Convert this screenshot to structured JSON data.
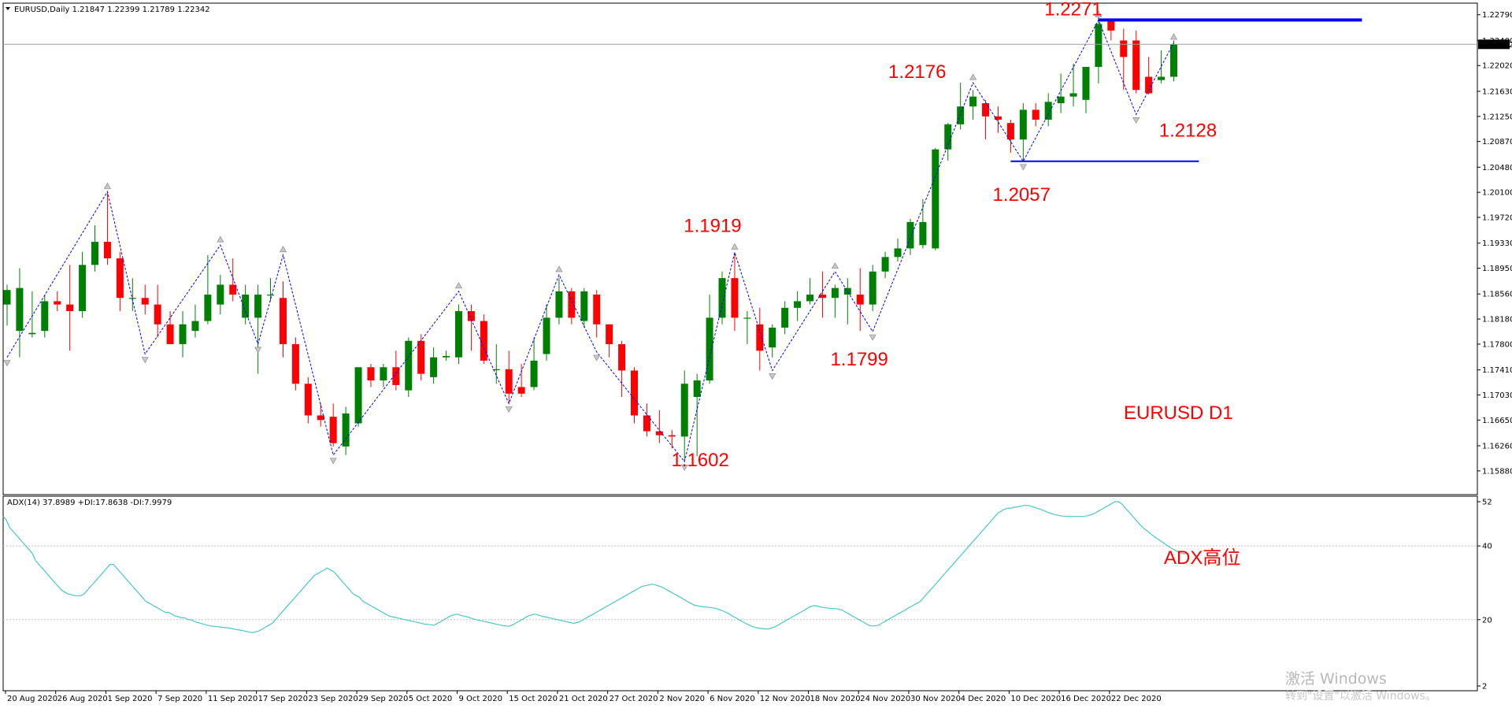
{
  "header": {
    "symbol_line": "EURUSD,Daily  1.21847 1.22399 1.21789 1.22342"
  },
  "indicator": {
    "header": "ADX(14) 37.8989 +DI:17.8638 -DI:7.9979",
    "levels": [
      "52",
      "40",
      "20",
      "2"
    ],
    "annotation": "ADX高位"
  },
  "watermark": {
    "line1": "激活 Windows",
    "line2": "转到\"设置\"以激活 Windows。"
  },
  "colors": {
    "bull": "#008000",
    "bear": "#ff0000",
    "zigzag": "#0000ff",
    "adx_line": "#48c8c8",
    "annotation": "#ff0000"
  },
  "chart_data": [
    {
      "type": "candlestick",
      "symbol": "EURUSD",
      "timeframe": "Daily",
      "title": "EURUSD D1",
      "ylim": [
        1.1558,
        1.2287
      ],
      "y_ticks": [
        "1.22790",
        "1.22400",
        "1.22020",
        "1.21630",
        "1.21250",
        "1.20870",
        "1.20480",
        "1.20100",
        "1.19720",
        "1.19330",
        "1.18950",
        "1.18560",
        "1.18180",
        "1.17800",
        "1.17410",
        "1.17030",
        "1.16650",
        "1.16260",
        "1.15880"
      ],
      "current_price": "1.22342",
      "x_labels": [
        "20 Aug 2020",
        "26 Aug 2020",
        "1 Sep 2020",
        "7 Sep 2020",
        "11 Sep 2020",
        "17 Sep 2020",
        "23 Sep 2020",
        "29 Sep 2020",
        "5 Oct 2020",
        "9 Oct 2020",
        "15 Oct 2020",
        "21 Oct 2020",
        "27 Oct 2020",
        "2 Nov 2020",
        "6 Nov 2020",
        "12 Nov 2020",
        "18 Nov 2020",
        "24 Nov 2020",
        "30 Nov 2020",
        "4 Dec 2020",
        "10 Dec 2020",
        "16 Dec 2020",
        "22 Dec 2020"
      ],
      "candles": [
        {
          "o": 1.184,
          "h": 1.187,
          "l": 1.1808,
          "c": 1.1862
        },
        {
          "o": 1.18,
          "h": 1.1895,
          "l": 1.176,
          "c": 1.1865
        },
        {
          "o": 1.1795,
          "h": 1.186,
          "l": 1.179,
          "c": 1.1797
        },
        {
          "o": 1.18,
          "h": 1.1855,
          "l": 1.179,
          "c": 1.1845
        },
        {
          "o": 1.1845,
          "h": 1.186,
          "l": 1.183,
          "c": 1.184
        },
        {
          "o": 1.184,
          "h": 1.19,
          "l": 1.177,
          "c": 1.183
        },
        {
          "o": 1.183,
          "h": 1.192,
          "l": 1.182,
          "c": 1.19
        },
        {
          "o": 1.19,
          "h": 1.196,
          "l": 1.189,
          "c": 1.1935
        },
        {
          "o": 1.1935,
          "h": 1.2011,
          "l": 1.19,
          "c": 1.191
        },
        {
          "o": 1.191,
          "h": 1.192,
          "l": 1.183,
          "c": 1.185
        },
        {
          "o": 1.185,
          "h": 1.188,
          "l": 1.183,
          "c": 1.185
        },
        {
          "o": 1.185,
          "h": 1.187,
          "l": 1.1825,
          "c": 1.184
        },
        {
          "o": 1.184,
          "h": 1.187,
          "l": 1.179,
          "c": 1.181
        },
        {
          "o": 1.181,
          "h": 1.183,
          "l": 1.178,
          "c": 1.178
        },
        {
          "o": 1.178,
          "h": 1.183,
          "l": 1.176,
          "c": 1.181
        },
        {
          "o": 1.18,
          "h": 1.184,
          "l": 1.179,
          "c": 1.1815
        },
        {
          "o": 1.1815,
          "h": 1.1915,
          "l": 1.181,
          "c": 1.1855
        },
        {
          "o": 1.184,
          "h": 1.1885,
          "l": 1.1825,
          "c": 1.187
        },
        {
          "o": 1.187,
          "h": 1.191,
          "l": 1.1845,
          "c": 1.1855
        },
        {
          "o": 1.182,
          "h": 1.187,
          "l": 1.181,
          "c": 1.1855
        },
        {
          "o": 1.182,
          "h": 1.187,
          "l": 1.1735,
          "c": 1.1855
        },
        {
          "o": 1.1855,
          "h": 1.188,
          "l": 1.1845,
          "c": 1.1855
        },
        {
          "o": 1.185,
          "h": 1.1875,
          "l": 1.176,
          "c": 1.178
        },
        {
          "o": 1.178,
          "h": 1.179,
          "l": 1.171,
          "c": 1.172
        },
        {
          "o": 1.172,
          "h": 1.173,
          "l": 1.166,
          "c": 1.1672
        },
        {
          "o": 1.1672,
          "h": 1.169,
          "l": 1.1655,
          "c": 1.1665
        },
        {
          "o": 1.167,
          "h": 1.169,
          "l": 1.1625,
          "c": 1.163
        },
        {
          "o": 1.1625,
          "h": 1.1685,
          "l": 1.1612,
          "c": 1.1675
        },
        {
          "o": 1.166,
          "h": 1.1745,
          "l": 1.1655,
          "c": 1.1745
        },
        {
          "o": 1.1745,
          "h": 1.175,
          "l": 1.1715,
          "c": 1.1725
        },
        {
          "o": 1.1725,
          "h": 1.175,
          "l": 1.1715,
          "c": 1.1745
        },
        {
          "o": 1.1745,
          "h": 1.177,
          "l": 1.171,
          "c": 1.1718
        },
        {
          "o": 1.171,
          "h": 1.179,
          "l": 1.17,
          "c": 1.1785
        },
        {
          "o": 1.1785,
          "h": 1.1795,
          "l": 1.1725,
          "c": 1.1735
        },
        {
          "o": 1.173,
          "h": 1.1775,
          "l": 1.172,
          "c": 1.176
        },
        {
          "o": 1.176,
          "h": 1.177,
          "l": 1.1755,
          "c": 1.1762
        },
        {
          "o": 1.176,
          "h": 1.184,
          "l": 1.175,
          "c": 1.183
        },
        {
          "o": 1.183,
          "h": 1.184,
          "l": 1.177,
          "c": 1.1815
        },
        {
          "o": 1.1815,
          "h": 1.1825,
          "l": 1.175,
          "c": 1.1755
        },
        {
          "o": 1.1742,
          "h": 1.178,
          "l": 1.172,
          "c": 1.1742
        },
        {
          "o": 1.1742,
          "h": 1.177,
          "l": 1.169,
          "c": 1.1705
        },
        {
          "o": 1.1715,
          "h": 1.175,
          "l": 1.17,
          "c": 1.1705
        },
        {
          "o": 1.1715,
          "h": 1.179,
          "l": 1.171,
          "c": 1.1755
        },
        {
          "o": 1.1765,
          "h": 1.184,
          "l": 1.1755,
          "c": 1.182
        },
        {
          "o": 1.182,
          "h": 1.188,
          "l": 1.181,
          "c": 1.186
        },
        {
          "o": 1.186,
          "h": 1.1865,
          "l": 1.181,
          "c": 1.182
        },
        {
          "o": 1.1815,
          "h": 1.1865,
          "l": 1.1805,
          "c": 1.186
        },
        {
          "o": 1.1855,
          "h": 1.1862,
          "l": 1.179,
          "c": 1.181
        },
        {
          "o": 1.181,
          "h": 1.181,
          "l": 1.176,
          "c": 1.178
        },
        {
          "o": 1.178,
          "h": 1.1785,
          "l": 1.17,
          "c": 1.174
        },
        {
          "o": 1.174,
          "h": 1.1745,
          "l": 1.166,
          "c": 1.1672
        },
        {
          "o": 1.1672,
          "h": 1.169,
          "l": 1.164,
          "c": 1.1648
        },
        {
          "o": 1.1648,
          "h": 1.168,
          "l": 1.163,
          "c": 1.1642
        },
        {
          "o": 1.1642,
          "h": 1.165,
          "l": 1.1622,
          "c": 1.164
        },
        {
          "o": 1.164,
          "h": 1.174,
          "l": 1.1602,
          "c": 1.172
        },
        {
          "o": 1.17,
          "h": 1.1735,
          "l": 1.161,
          "c": 1.1725
        },
        {
          "o": 1.1725,
          "h": 1.1855,
          "l": 1.172,
          "c": 1.182
        },
        {
          "o": 1.182,
          "h": 1.189,
          "l": 1.181,
          "c": 1.188
        },
        {
          "o": 1.188,
          "h": 1.1919,
          "l": 1.18,
          "c": 1.182
        },
        {
          "o": 1.182,
          "h": 1.183,
          "l": 1.178,
          "c": 1.182
        },
        {
          "o": 1.181,
          "h": 1.1835,
          "l": 1.174,
          "c": 1.177
        },
        {
          "o": 1.1775,
          "h": 1.181,
          "l": 1.176,
          "c": 1.1805
        },
        {
          "o": 1.1805,
          "h": 1.1845,
          "l": 1.1795,
          "c": 1.1835
        },
        {
          "o": 1.1835,
          "h": 1.186,
          "l": 1.1815,
          "c": 1.1845
        },
        {
          "o": 1.1845,
          "h": 1.188,
          "l": 1.184,
          "c": 1.1855
        },
        {
          "o": 1.1855,
          "h": 1.189,
          "l": 1.182,
          "c": 1.185
        },
        {
          "o": 1.185,
          "h": 1.187,
          "l": 1.182,
          "c": 1.1865
        },
        {
          "o": 1.1855,
          "h": 1.188,
          "l": 1.181,
          "c": 1.1865
        },
        {
          "o": 1.1855,
          "h": 1.1895,
          "l": 1.18,
          "c": 1.184
        },
        {
          "o": 1.184,
          "h": 1.19,
          "l": 1.183,
          "c": 1.189
        },
        {
          "o": 1.189,
          "h": 1.192,
          "l": 1.188,
          "c": 1.1912
        },
        {
          "o": 1.1912,
          "h": 1.194,
          "l": 1.1905,
          "c": 1.1925
        },
        {
          "o": 1.1925,
          "h": 1.197,
          "l": 1.1915,
          "c": 1.1965
        },
        {
          "o": 1.193,
          "h": 1.2,
          "l": 1.1925,
          "c": 1.1965
        },
        {
          "o": 1.1925,
          "h": 1.2077,
          "l": 1.1922,
          "c": 1.2075
        },
        {
          "o": 1.2075,
          "h": 1.2115,
          "l": 1.2058,
          "c": 1.2113
        },
        {
          "o": 1.2113,
          "h": 1.2176,
          "l": 1.2105,
          "c": 1.214
        },
        {
          "o": 1.214,
          "h": 1.2165,
          "l": 1.212,
          "c": 1.2155
        },
        {
          "o": 1.2145,
          "h": 1.215,
          "l": 1.209,
          "c": 1.2125
        },
        {
          "o": 1.2125,
          "h": 1.214,
          "l": 1.21,
          "c": 1.212
        },
        {
          "o": 1.2115,
          "h": 1.212,
          "l": 1.207,
          "c": 1.209
        },
        {
          "o": 1.209,
          "h": 1.2145,
          "l": 1.2057,
          "c": 1.2135
        },
        {
          "o": 1.2135,
          "h": 1.2145,
          "l": 1.211,
          "c": 1.212
        },
        {
          "o": 1.212,
          "h": 1.216,
          "l": 1.211,
          "c": 1.2147
        },
        {
          "o": 1.2145,
          "h": 1.219,
          "l": 1.213,
          "c": 1.2155
        },
        {
          "o": 1.2155,
          "h": 1.2205,
          "l": 1.214,
          "c": 1.216
        },
        {
          "o": 1.215,
          "h": 1.2195,
          "l": 1.213,
          "c": 1.22
        },
        {
          "o": 1.22,
          "h": 1.2275,
          "l": 1.2175,
          "c": 1.2265
        },
        {
          "o": 1.227,
          "h": 1.2271,
          "l": 1.224,
          "c": 1.2255
        },
        {
          "o": 1.224,
          "h": 1.2258,
          "l": 1.2165,
          "c": 1.2215
        },
        {
          "o": 1.224,
          "h": 1.2255,
          "l": 1.216,
          "c": 1.2165
        },
        {
          "o": 1.2185,
          "h": 1.2215,
          "l": 1.2158,
          "c": 1.216
        },
        {
          "o": 1.218,
          "h": 1.2225,
          "l": 1.2175,
          "c": 1.2185
        },
        {
          "o": 1.2185,
          "h": 1.224,
          "l": 1.2178,
          "c": 1.2234
        }
      ],
      "zigzag": [
        {
          "i": 0,
          "v": 1.176
        },
        {
          "i": 8,
          "v": 1.2011
        },
        {
          "i": 11,
          "v": 1.1765
        },
        {
          "i": 17,
          "v": 1.193
        },
        {
          "i": 20,
          "v": 1.178
        },
        {
          "i": 22,
          "v": 1.1915
        },
        {
          "i": 26,
          "v": 1.1612
        },
        {
          "i": 36,
          "v": 1.186
        },
        {
          "i": 40,
          "v": 1.169
        },
        {
          "i": 44,
          "v": 1.1885
        },
        {
          "i": 47,
          "v": 1.1768
        },
        {
          "i": 54,
          "v": 1.1602
        },
        {
          "i": 58,
          "v": 1.1919
        },
        {
          "i": 61,
          "v": 1.174
        },
        {
          "i": 66,
          "v": 1.189
        },
        {
          "i": 69,
          "v": 1.1799
        },
        {
          "i": 77,
          "v": 1.2176
        },
        {
          "i": 81,
          "v": 1.2057
        },
        {
          "i": 87,
          "v": 1.2271
        },
        {
          "i": 90,
          "v": 1.2128
        },
        {
          "i": 93,
          "v": 1.2237
        }
      ],
      "levels": [
        {
          "price": 1.2271,
          "from": 87,
          "to": 108,
          "color": "#0000ff"
        },
        {
          "price": 1.2057,
          "from": 80,
          "to": 95,
          "color": "#0000ff"
        }
      ],
      "annotations": [
        {
          "text": "1.2271",
          "i": 86,
          "v": 1.2271
        },
        {
          "text": "1.2176",
          "i": 75,
          "v": 1.2176
        },
        {
          "text": "1.2128",
          "i": 93,
          "v": 1.2128
        },
        {
          "text": "1.2057",
          "i": 82,
          "v": 1.2057
        },
        {
          "text": "1.1919",
          "i": 58,
          "v": 1.1919
        },
        {
          "text": "1.1799",
          "i": 69,
          "v": 1.1799
        },
        {
          "text": "1.1602",
          "i": 55,
          "v": 1.1602
        }
      ]
    },
    {
      "type": "line",
      "name": "ADX(14)",
      "ylim": [
        2,
        52
      ],
      "reference_levels": [
        40,
        20
      ],
      "values": [
        48,
        47,
        45,
        44,
        43,
        42,
        41,
        40,
        39,
        38,
        36,
        35,
        34,
        33,
        32,
        31,
        30,
        29,
        28,
        27.5,
        27,
        26.8,
        26.5,
        26.5,
        26.5,
        27,
        28,
        29,
        30,
        31,
        32,
        33,
        34,
        35,
        35,
        34,
        33,
        32,
        31,
        30,
        29,
        28,
        27,
        26,
        25,
        24.5,
        24,
        23.5,
        23,
        22.5,
        22,
        22,
        21.5,
        21,
        20.8,
        20.5,
        20.5,
        20,
        20,
        19.5,
        19.2,
        19,
        18.7,
        18.5,
        18.3,
        18.2,
        18.1,
        18,
        17.9,
        17.8,
        17.7,
        17.5,
        17.3,
        17.2,
        17,
        16.8,
        16.6,
        16.5,
        16.7,
        17,
        17.5,
        18,
        18.5,
        19,
        20,
        21,
        22,
        23,
        24,
        25,
        26,
        27,
        28,
        29,
        30,
        31,
        32,
        32.5,
        33,
        33.5,
        34,
        33.5,
        33,
        32,
        31,
        30,
        29,
        28,
        27,
        26.5,
        26,
        25,
        24.5,
        24,
        23.5,
        23,
        22.5,
        22,
        21.5,
        21,
        20.8,
        20.6,
        20.4,
        20.2,
        20,
        19.8,
        19.6,
        19.4,
        19.2,
        19,
        18.8,
        18.7,
        18.6,
        18.5,
        19,
        19.5,
        20,
        20.5,
        21,
        21.3,
        21.5,
        21.2,
        21,
        20.8,
        20.5,
        20.2,
        20,
        19.8,
        19.6,
        19.4,
        19.2,
        19,
        18.8,
        18.6,
        18.4,
        18.3,
        18.2,
        18.5,
        19,
        19.5,
        20,
        20.5,
        21,
        21.3,
        21.5,
        21.3,
        21,
        20.8,
        20.6,
        20.4,
        20.2,
        20,
        19.8,
        19.6,
        19.4,
        19.2,
        19,
        19.2,
        19.5,
        20,
        20.5,
        21,
        21.5,
        22,
        22.5,
        23,
        23.5,
        24,
        24.5,
        25,
        25.5,
        26,
        26.5,
        27,
        27.5,
        28,
        28.5,
        29,
        29.2,
        29.4,
        29.6,
        29.5,
        29.2,
        28.9,
        28.5,
        28,
        27.5,
        27,
        26.5,
        26,
        25.5,
        25,
        24.5,
        24,
        23.8,
        23.6,
        23.5,
        23.4,
        23.3,
        23.2,
        23,
        22.7,
        22.4,
        22,
        21.5,
        21,
        20.5,
        20,
        19.5,
        19,
        18.6,
        18.2,
        17.9,
        17.7,
        17.6,
        17.5,
        17.5,
        17.7,
        18,
        18.5,
        19,
        19.5,
        20,
        20.5,
        21,
        21.5,
        22,
        22.5,
        23,
        23.5,
        23.8,
        23.7,
        23.5,
        23.3,
        23.2,
        23.1,
        23,
        23,
        22.8,
        22.5,
        22,
        21.5,
        21,
        20.5,
        20,
        19.5,
        19,
        18.5,
        18.3,
        18.3,
        18.5,
        19,
        19.5,
        20,
        20.5,
        21,
        21.5,
        22,
        22.5,
        23,
        23.5,
        24,
        24.5,
        25,
        26,
        27,
        28,
        29,
        30,
        31,
        32,
        33,
        34,
        35,
        36,
        37,
        38,
        39,
        40,
        41,
        42,
        43,
        44,
        45,
        46,
        47,
        48,
        49,
        49.5,
        50,
        50.2,
        50.3,
        50.5,
        50.6,
        50.8,
        51,
        51,
        50.8,
        50.5,
        50.2,
        50,
        49.6,
        49.2,
        48.9,
        48.6,
        48.4,
        48.2,
        48.1,
        48,
        48,
        48,
        48,
        48,
        48,
        48.1,
        48.3,
        48.6,
        49,
        49.5,
        50,
        50.5,
        51,
        51.5,
        52,
        52,
        51.5,
        50.5,
        49.5,
        48.5,
        47.5,
        46.5,
        45.5,
        44.7,
        44,
        43.3,
        42.6,
        42,
        41.4,
        40.8,
        40.2,
        39.6,
        39.1,
        38.6,
        38.2,
        37.9,
        37.9
      ]
    }
  ]
}
